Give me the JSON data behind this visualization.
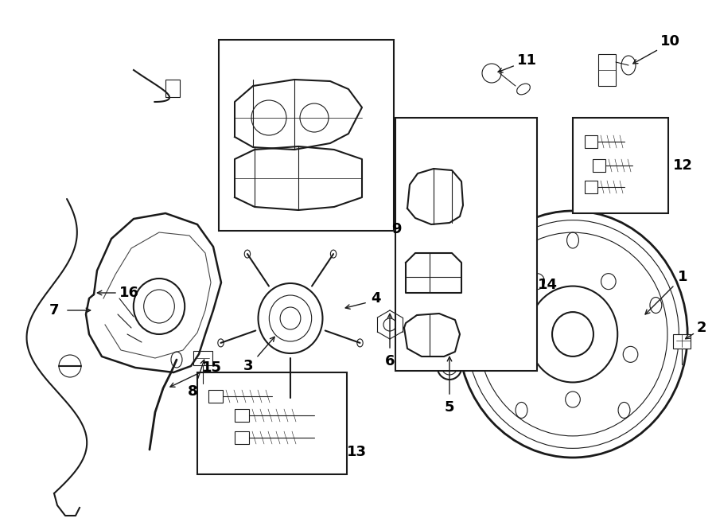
{
  "bg_color": "#ffffff",
  "line_color": "#1a1a1a",
  "line_width": 1.5,
  "thin_line": 0.8,
  "fig_width": 9.0,
  "fig_height": 6.61
}
